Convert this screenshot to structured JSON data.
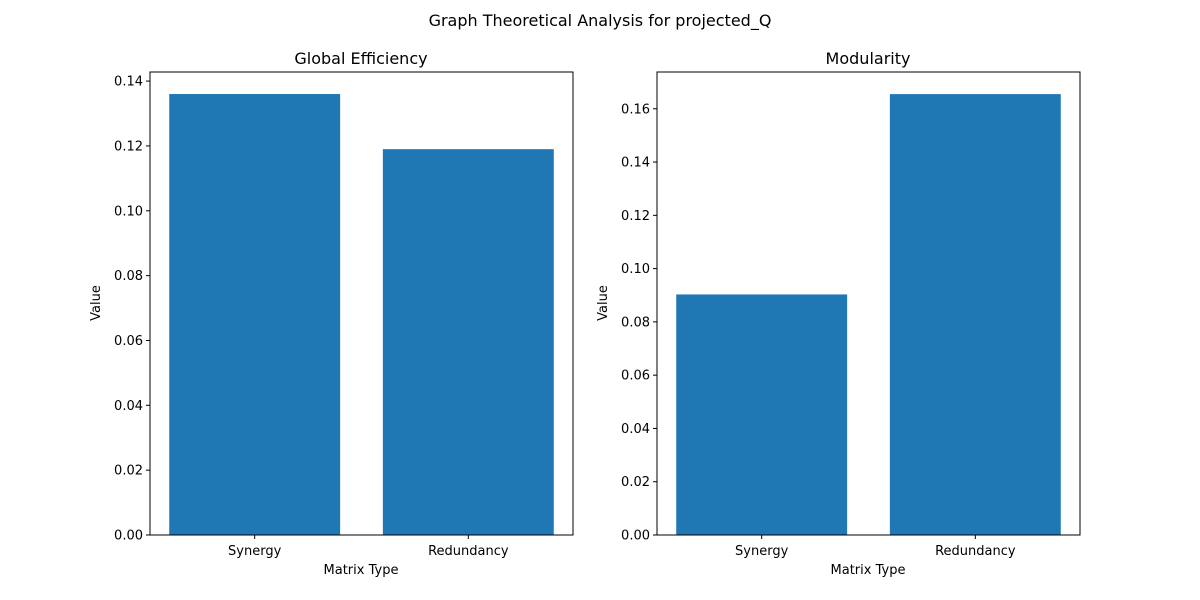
{
  "figure": {
    "suptitle": "Graph Theoretical Analysis for projected_Q"
  },
  "chart_data": [
    {
      "type": "bar",
      "title": "Global Efficiency",
      "xlabel": "Matrix Type",
      "ylabel": "Value",
      "categories": [
        "Synergy",
        "Redundancy"
      ],
      "values": [
        0.136,
        0.119
      ],
      "ylim": [
        0,
        0.1428
      ],
      "yticks": [
        0.0,
        0.02,
        0.04,
        0.06,
        0.08,
        0.1,
        0.12,
        0.14
      ],
      "ytick_labels": [
        "0.00",
        "0.02",
        "0.04",
        "0.06",
        "0.08",
        "0.10",
        "0.12",
        "0.14"
      ],
      "grid": false,
      "bar_color": "#1f77b4"
    },
    {
      "type": "bar",
      "title": "Modularity",
      "xlabel": "Matrix Type",
      "ylabel": "Value",
      "categories": [
        "Synergy",
        "Redundancy"
      ],
      "values": [
        0.0903,
        0.1655
      ],
      "ylim": [
        0,
        0.1738
      ],
      "yticks": [
        0.0,
        0.02,
        0.04,
        0.06,
        0.08,
        0.1,
        0.12,
        0.14,
        0.16
      ],
      "ytick_labels": [
        "0.00",
        "0.02",
        "0.04",
        "0.06",
        "0.08",
        "0.10",
        "0.12",
        "0.14",
        "0.16"
      ],
      "grid": false,
      "bar_color": "#1f77b4"
    }
  ]
}
